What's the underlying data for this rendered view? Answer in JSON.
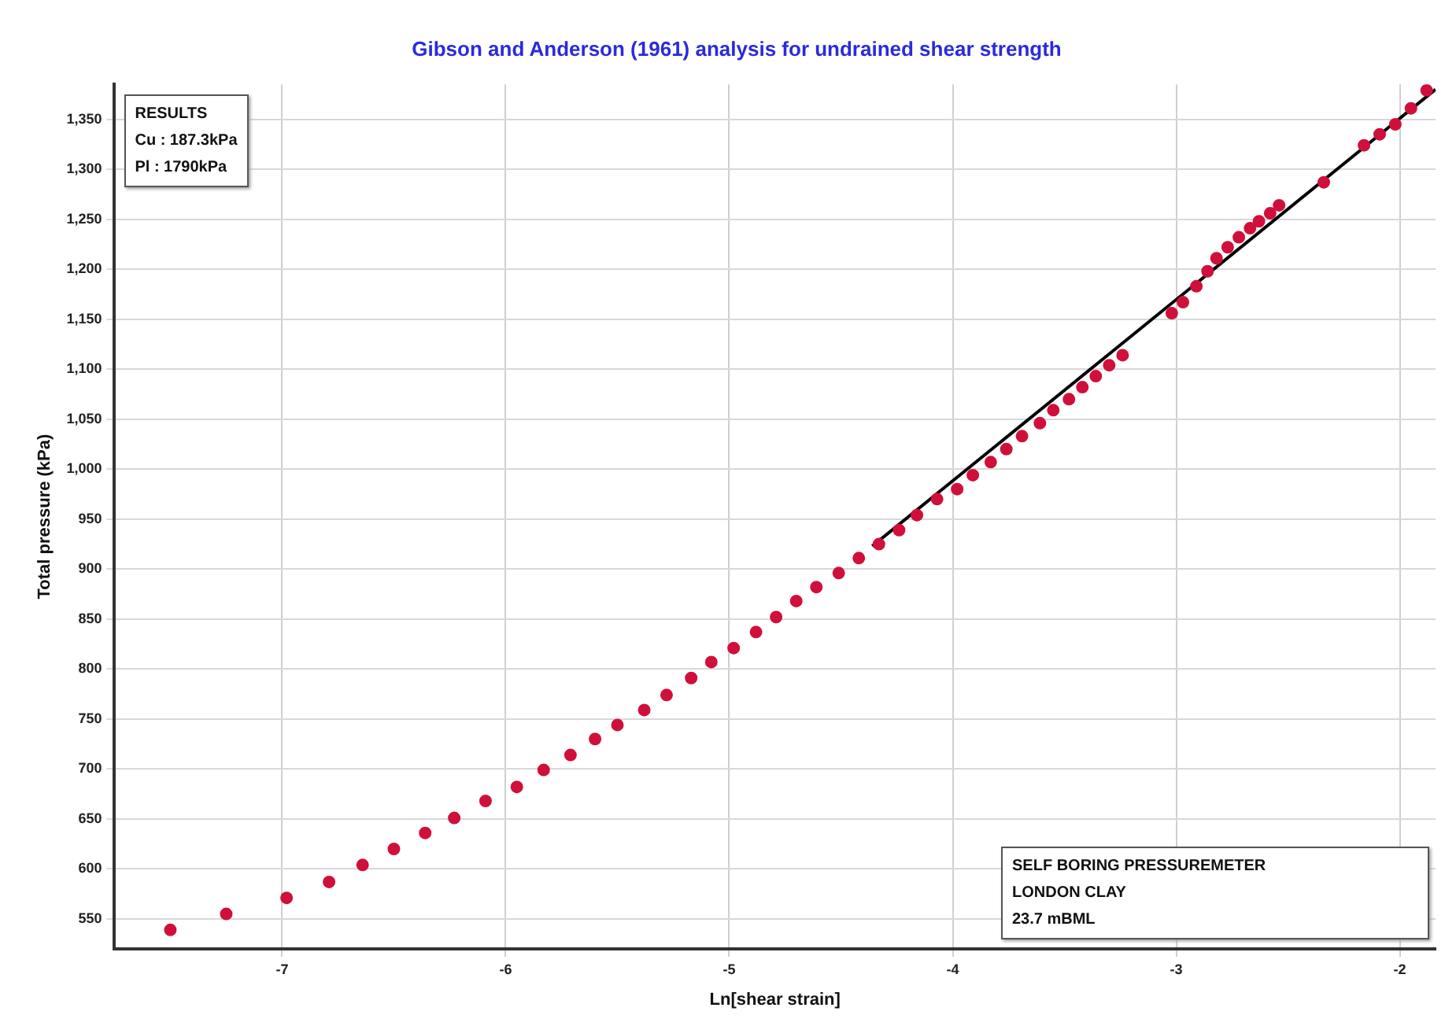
{
  "chart_data": {
    "type": "scatter",
    "title": "Gibson and Anderson (1961) analysis for undrained shear strength",
    "xlabel": "Ln[shear strain]",
    "ylabel": "Total pressure (kPa)",
    "annotations": [
      "RESULTS\nCu : 187.3kPa\nPl : 1790kPa",
      "SELF BORING PRESSUREMETER\nLONDON CLAY\n23.7 mBML"
    ],
    "series": [
      {
        "color": "#d0103a",
        "marker": "circle",
        "x": [
          -7.5,
          -7.25,
          -6.98,
          -6.79,
          -6.64,
          -6.5,
          -6.36,
          -6.23,
          -6.09,
          -5.95,
          -5.83,
          -5.71,
          -5.6,
          -5.5,
          -5.38,
          -5.28,
          -5.17,
          -5.08,
          -4.98,
          -4.88,
          -4.79,
          -4.7,
          -4.61,
          -4.51,
          -4.42,
          -4.33,
          -4.24,
          -4.16,
          -4.07,
          -3.98,
          -3.91,
          -3.83,
          -3.76,
          -3.69,
          -3.61,
          -3.55,
          -3.48,
          -3.42,
          -3.36,
          -3.3,
          -3.24,
          -3.02,
          -2.97,
          -2.91,
          -2.86,
          -2.82,
          -2.77,
          -2.72,
          -2.67,
          -2.63,
          -2.58,
          -2.54,
          -2.34,
          -2.16,
          -2.09,
          -2.02,
          -1.95,
          -1.88
        ],
        "values": [
          539,
          555,
          571,
          587,
          604,
          620,
          636,
          651,
          668,
          682,
          699,
          714,
          730,
          744,
          759,
          774,
          791,
          807,
          821,
          837,
          852,
          868,
          882,
          896,
          911,
          925,
          939,
          954,
          970,
          980,
          994,
          1007,
          1020,
          1033,
          1046,
          1059,
          1070,
          1082,
          1093,
          1104,
          1114,
          1156,
          1167,
          1183,
          1198,
          1211,
          1222,
          1232,
          1241,
          1248,
          1256,
          1264,
          1287,
          1324,
          1335,
          1345,
          1361,
          1379
        ]
      },
      {
        "type": "line",
        "color": "#000000",
        "marker": "none",
        "line_style": "solid",
        "x": [
          -4.36,
          -1.84
        ],
        "values": [
          923,
          1380
        ]
      }
    ],
    "xlim": [
      -7.75,
      -1.84
    ],
    "xticks": [
      -7,
      -6,
      -5,
      -4,
      -3,
      -2
    ],
    "ylim": [
      520,
      1385
    ],
    "yticks": [
      550,
      600,
      650,
      700,
      750,
      800,
      850,
      900,
      950,
      {
        "value": 1000,
        "label": "1,000"
      },
      {
        "value": 1050,
        "label": "1,050"
      },
      {
        "value": 1100,
        "label": "1,100"
      },
      {
        "value": 1150,
        "label": "1,150"
      },
      {
        "value": 1200,
        "label": "1,200"
      },
      {
        "value": 1250,
        "label": "1,250"
      },
      {
        "value": 1300,
        "label": "1,300"
      },
      {
        "value": 1350,
        "label": "1,350"
      }
    ],
    "grid": true,
    "legend": false
  }
}
